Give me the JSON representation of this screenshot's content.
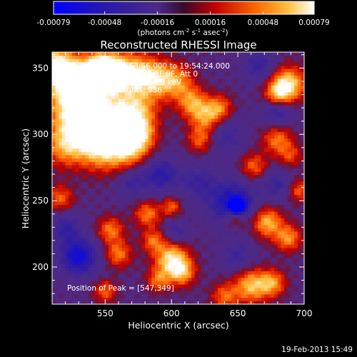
{
  "chart_data": {
    "type": "heatmap",
    "title": "Reconstructed RHESSI Image",
    "xlabel": "Heliocentric X (arcsec)",
    "ylabel": "Heliocentric Y (arcsec)",
    "xlim": [
      510,
      700
    ],
    "ylim": [
      172,
      362
    ],
    "xticks": [
      550,
      600,
      650,
      700
    ],
    "yticks": [
      200,
      250,
      300,
      350
    ],
    "colorbar": {
      "range": [
        -0.00079,
        0.00079
      ],
      "ticks": [
        "-0.00079",
        "-0.00048",
        "-0.00016",
        "0.00016",
        "0.00048",
        "0.00079"
      ],
      "tick_values": [
        -0.00079,
        -0.00048,
        -0.00016,
        0.00016,
        0.00048,
        0.00079
      ],
      "unit_parts": {
        "pre": "(photons cm",
        "exp1": "-2",
        "mid1": " s",
        "exp2": "-1",
        "mid2": " asec",
        "exp3": "-2",
        "post": ")"
      }
    },
    "annotations": [
      "19-Feb-2013 19:53:56.000 to 19:54:24.000",
      "Detectors: 3F 5F 6F 7F 8F 9F, Att 0",
      "Energy Range: 25.0 - 50.0 keV",
      "Clean    Total counts: 936."
    ],
    "peak_label": "Position of Peak = [547,349]",
    "peak": [
      547,
      349
    ],
    "blobs": [
      {
        "x": 512,
        "y": 352,
        "r": 10,
        "v": 0.0007
      },
      {
        "x": 522,
        "y": 340,
        "r": 12,
        "v": 0.0006
      },
      {
        "x": 538,
        "y": 338,
        "r": 12,
        "v": 0.0007
      },
      {
        "x": 547,
        "y": 349,
        "r": 8,
        "v": 0.00079
      },
      {
        "x": 556,
        "y": 346,
        "r": 10,
        "v": 0.0006
      },
      {
        "x": 572,
        "y": 346,
        "r": 11,
        "v": 0.00055
      },
      {
        "x": 588,
        "y": 342,
        "r": 10,
        "v": 0.0005
      },
      {
        "x": 604,
        "y": 340,
        "r": 9,
        "v": 0.00045
      },
      {
        "x": 524,
        "y": 316,
        "r": 12,
        "v": 0.0006
      },
      {
        "x": 540,
        "y": 306,
        "r": 10,
        "v": 0.0007
      },
      {
        "x": 556,
        "y": 312,
        "r": 12,
        "v": 0.0006
      },
      {
        "x": 574,
        "y": 318,
        "r": 11,
        "v": 0.0005
      },
      {
        "x": 520,
        "y": 292,
        "r": 11,
        "v": 0.00055
      },
      {
        "x": 546,
        "y": 290,
        "r": 12,
        "v": 0.0006
      },
      {
        "x": 566,
        "y": 290,
        "r": 11,
        "v": 0.00055
      },
      {
        "x": 574,
        "y": 300,
        "r": 9,
        "v": 0.0006
      },
      {
        "x": 616,
        "y": 324,
        "r": 8,
        "v": 0.0005
      },
      {
        "x": 626,
        "y": 312,
        "r": 8,
        "v": 0.00045
      },
      {
        "x": 622,
        "y": 296,
        "r": 7,
        "v": 0.0004
      },
      {
        "x": 636,
        "y": 320,
        "r": 7,
        "v": 0.00045
      },
      {
        "x": 688,
        "y": 338,
        "r": 9,
        "v": 0.0007
      },
      {
        "x": 680,
        "y": 330,
        "r": 7,
        "v": 0.0005
      },
      {
        "x": 680,
        "y": 296,
        "r": 8,
        "v": 0.00045
      },
      {
        "x": 662,
        "y": 276,
        "r": 7,
        "v": 0.0004
      },
      {
        "x": 516,
        "y": 252,
        "r": 7,
        "v": 0.0004
      },
      {
        "x": 554,
        "y": 228,
        "r": 7,
        "v": 0.00045
      },
      {
        "x": 582,
        "y": 240,
        "r": 7,
        "v": 0.00045
      },
      {
        "x": 600,
        "y": 246,
        "r": 5,
        "v": 0.0004
      },
      {
        "x": 648,
        "y": 236,
        "r": 6,
        "v": 0.0004
      },
      {
        "x": 672,
        "y": 234,
        "r": 8,
        "v": 0.0006
      },
      {
        "x": 688,
        "y": 222,
        "r": 7,
        "v": 0.0005
      },
      {
        "x": 560,
        "y": 210,
        "r": 7,
        "v": 0.00045
      },
      {
        "x": 586,
        "y": 220,
        "r": 6,
        "v": 0.0004
      },
      {
        "x": 600,
        "y": 206,
        "r": 9,
        "v": 0.0007
      },
      {
        "x": 608,
        "y": 196,
        "r": 7,
        "v": 0.0005
      },
      {
        "x": 590,
        "y": 190,
        "r": 6,
        "v": 0.0004
      },
      {
        "x": 660,
        "y": 186,
        "r": 9,
        "v": 0.0006
      },
      {
        "x": 676,
        "y": 188,
        "r": 7,
        "v": 0.0005
      },
      {
        "x": 640,
        "y": 178,
        "r": 7,
        "v": 0.0004
      },
      {
        "x": 550,
        "y": 182,
        "r": 6,
        "v": 0.0004
      },
      {
        "x": 696,
        "y": 258,
        "r": 6,
        "v": 0.0004
      },
      {
        "x": 690,
        "y": 284,
        "r": 6,
        "v": 0.0003
      },
      {
        "x": 530,
        "y": 208,
        "r": 10,
        "v": -0.00065
      },
      {
        "x": 646,
        "y": 248,
        "r": 12,
        "v": -0.0006
      },
      {
        "x": 650,
        "y": 246,
        "r": 4,
        "v": -0.00079
      },
      {
        "x": 592,
        "y": 270,
        "r": 9,
        "v": -0.00045
      },
      {
        "x": 680,
        "y": 318,
        "r": 8,
        "v": -0.0004
      },
      {
        "x": 620,
        "y": 264,
        "r": 10,
        "v": -0.0003
      },
      {
        "x": 640,
        "y": 300,
        "r": 10,
        "v": -0.0003
      },
      {
        "x": 570,
        "y": 264,
        "r": 8,
        "v": -0.0003
      },
      {
        "x": 680,
        "y": 262,
        "r": 8,
        "v": -0.0003
      },
      {
        "x": 520,
        "y": 230,
        "r": 8,
        "v": -0.00035
      },
      {
        "x": 650,
        "y": 208,
        "r": 8,
        "v": -0.0003
      },
      {
        "x": 604,
        "y": 226,
        "r": 6,
        "v": -0.0003
      },
      {
        "x": 666,
        "y": 352,
        "r": 8,
        "v": -0.00035
      }
    ]
  },
  "footer": {
    "timestamp": "19-Feb-2013 15:49"
  }
}
